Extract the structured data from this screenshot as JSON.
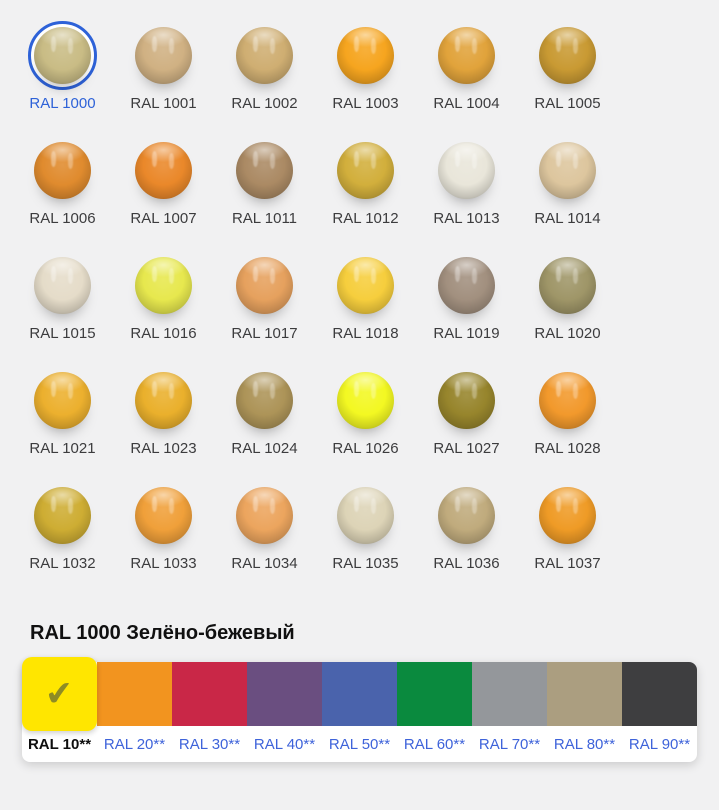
{
  "theme": {
    "bg": "#f1f1f2",
    "accent_blue": "#2e62d8",
    "link_blue": "#3e63da",
    "label_gray": "#3c3c3e",
    "title_black": "#101010",
    "check_olive": "#8e8c25",
    "panel_white": "#ffffff"
  },
  "palette_grid": {
    "items": [
      {
        "label": "RAL 1000",
        "color": "#c9bc85",
        "selected": true
      },
      {
        "label": "RAL 1001",
        "color": "#d0b183"
      },
      {
        "label": "RAL 1002",
        "color": "#cfae72"
      },
      {
        "label": "RAL 1003",
        "color": "#f6a51f"
      },
      {
        "label": "RAL 1004",
        "color": "#e1a33b"
      },
      {
        "label": "RAL 1005",
        "color": "#c99a33"
      },
      {
        "label": "RAL 1006",
        "color": "#e08b2e"
      },
      {
        "label": "RAL 1007",
        "color": "#ea882a"
      },
      {
        "label": "RAL 1011",
        "color": "#ab8a64"
      },
      {
        "label": "RAL 1012",
        "color": "#d2af3c"
      },
      {
        "label": "RAL 1013",
        "color": "#e9e6da"
      },
      {
        "label": "RAL 1014",
        "color": "#ddc69e"
      },
      {
        "label": "RAL 1015",
        "color": "#e5dcc9"
      },
      {
        "label": "RAL 1016",
        "color": "#e7e84e"
      },
      {
        "label": "RAL 1017",
        "color": "#e6a15e"
      },
      {
        "label": "RAL 1018",
        "color": "#f6ce3d"
      },
      {
        "label": "RAL 1019",
        "color": "#a2907f"
      },
      {
        "label": "RAL 1020",
        "color": "#9f9668"
      },
      {
        "label": "RAL 1021",
        "color": "#ecb02e"
      },
      {
        "label": "RAL 1023",
        "color": "#eab02c"
      },
      {
        "label": "RAL 1024",
        "color": "#ad9458"
      },
      {
        "label": "RAL 1026",
        "color": "#f3f822"
      },
      {
        "label": "RAL 1027",
        "color": "#97852c"
      },
      {
        "label": "RAL 1028",
        "color": "#f2992c"
      },
      {
        "label": "RAL 1032",
        "color": "#cead33"
      },
      {
        "label": "RAL 1033",
        "color": "#f0a03a"
      },
      {
        "label": "RAL 1034",
        "color": "#eca55e"
      },
      {
        "label": "RAL 1035",
        "color": "#ddd4b7"
      },
      {
        "label": "RAL 1036",
        "color": "#c0ab7d"
      },
      {
        "label": "RAL 1037",
        "color": "#ef9b26"
      }
    ]
  },
  "detail": {
    "title": "RAL 1000 Зелёно-бежевый"
  },
  "series_tabs": {
    "check_icon": "✔",
    "items": [
      {
        "label": "RAL 10**",
        "color": "#ffe600",
        "selected": true
      },
      {
        "label": "RAL 20**",
        "color": "#f2941f"
      },
      {
        "label": "RAL 30**",
        "color": "#c92747"
      },
      {
        "label": "RAL 40**",
        "color": "#6a4e80"
      },
      {
        "label": "RAL 50**",
        "color": "#4a63ac"
      },
      {
        "label": "RAL 60**",
        "color": "#0a8a3e"
      },
      {
        "label": "RAL 70**",
        "color": "#94979b"
      },
      {
        "label": "RAL 80**",
        "color": "#ab9e80"
      },
      {
        "label": "RAL 90**",
        "color": "#3e3e40"
      }
    ]
  }
}
